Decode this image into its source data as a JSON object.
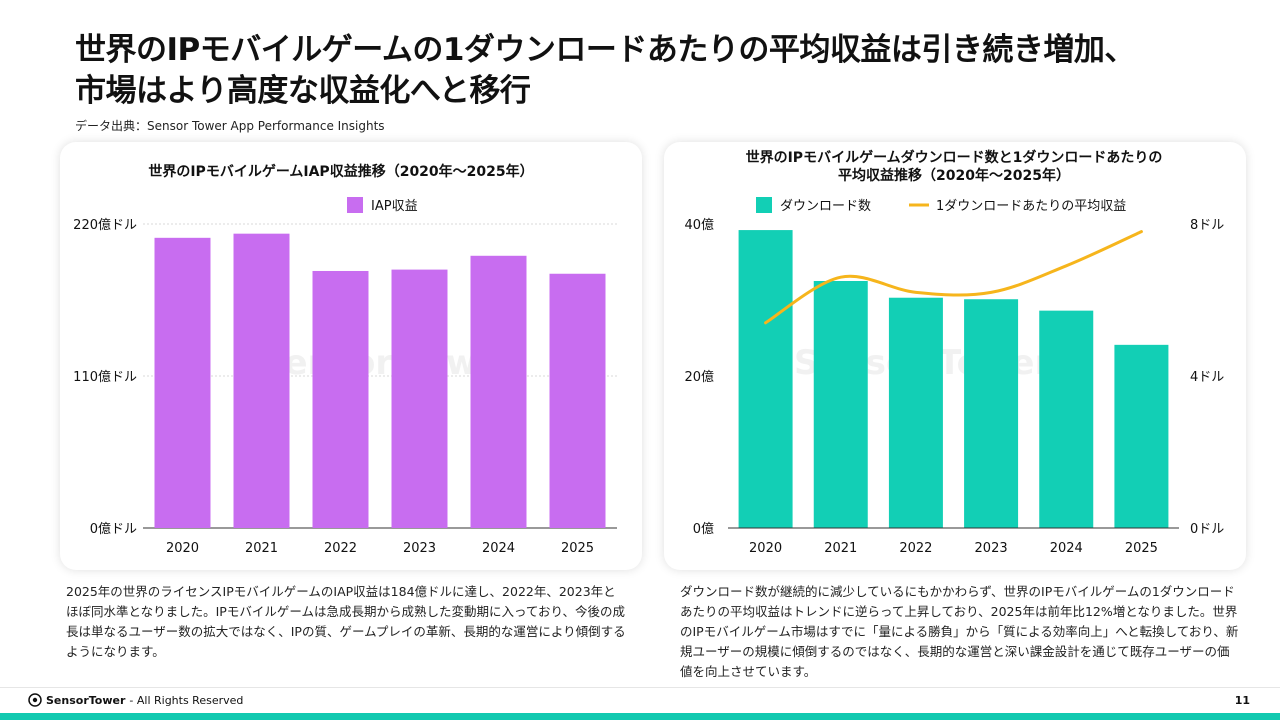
{
  "title_line1": "世界のIPモバイルゲームの1ダウンロードあたりの平均収益は引き続き増加、",
  "title_line2": "市場はより高度な収益化へと移行",
  "source": "データ出典：Sensor Tower App Performance Insights",
  "watermark": "Sensor Tower",
  "colors": {
    "bar_left": "#c86df0",
    "bar_right": "#12cfb5",
    "line": "#f6b51c",
    "accent": "#12c9b0"
  },
  "chart_data": [
    {
      "type": "bar",
      "title": "世界のIPモバイルゲームIAP収益推移（2020年〜2025年）",
      "categories": [
        "2020",
        "2021",
        "2022",
        "2023",
        "2024",
        "2025"
      ],
      "series": [
        {
          "name": "IAP収益",
          "values": [
            210,
            213,
            186,
            187,
            197,
            184
          ]
        }
      ],
      "ylim": [
        0,
        220
      ],
      "yticks": [
        {
          "value": 0,
          "label": "0億ドル"
        },
        {
          "value": 110,
          "label": "110億ドル"
        },
        {
          "value": 220,
          "label": "220億ドル"
        }
      ],
      "grid": true
    },
    {
      "type": "bar+line",
      "title_line1": "世界のIPモバイルゲームダウンロード数と1ダウンロードあたりの",
      "title_line2": "平均収益推移（2020年〜2025年）",
      "categories": [
        "2020",
        "2021",
        "2022",
        "2023",
        "2024",
        "2025"
      ],
      "series": [
        {
          "name": "ダウンロード数",
          "type": "bar",
          "axis": "left",
          "values": [
            39.2,
            32.5,
            30.3,
            30.1,
            28.6,
            24.1
          ]
        },
        {
          "name": "1ダウンロードあたりの平均収益",
          "type": "line",
          "axis": "right",
          "values": [
            5.4,
            6.6,
            6.2,
            6.2,
            6.9,
            7.8
          ]
        }
      ],
      "ylim_left": [
        0,
        40
      ],
      "ylim_right": [
        0,
        8
      ],
      "yticks_left": [
        {
          "value": 0,
          "label": "0億"
        },
        {
          "value": 20,
          "label": "20億"
        },
        {
          "value": 40,
          "label": "40億"
        }
      ],
      "yticks_right": [
        {
          "value": 0,
          "label": "0ドル"
        },
        {
          "value": 4,
          "label": "4ドル"
        },
        {
          "value": 8,
          "label": "8ドル"
        }
      ]
    }
  ],
  "caption_left": "2025年の世界のライセンスIPモバイルゲームのIAP収益は184億ドルに達し、2022年、2023年とほぼ同水準となりました。IPモバイルゲームは急成長期から成熟した変動期に入っており、今後の成長は単なるユーザー数の拡大ではなく、IPの質、ゲームプレイの革新、長期的な運営により傾倒するようになります。",
  "caption_right": "ダウンロード数が継続的に減少しているにもかかわらず、世界のIPモバイルゲームの1ダウンロードあたりの平均収益はトレンドに逆らって上昇しており、2025年は前年比12%増となりました。世界のIPモバイルゲーム市場はすでに「量による勝負」から「質による効率向上」へと転換しており、新規ユーザーの規模に傾倒するのではなく、長期的な運営と深い課金設計を通じて既存ユーザーの価値を向上させています。",
  "footer": {
    "brand": "SensorTower",
    "rights": " - All Rights Reserved",
    "page": "11"
  }
}
